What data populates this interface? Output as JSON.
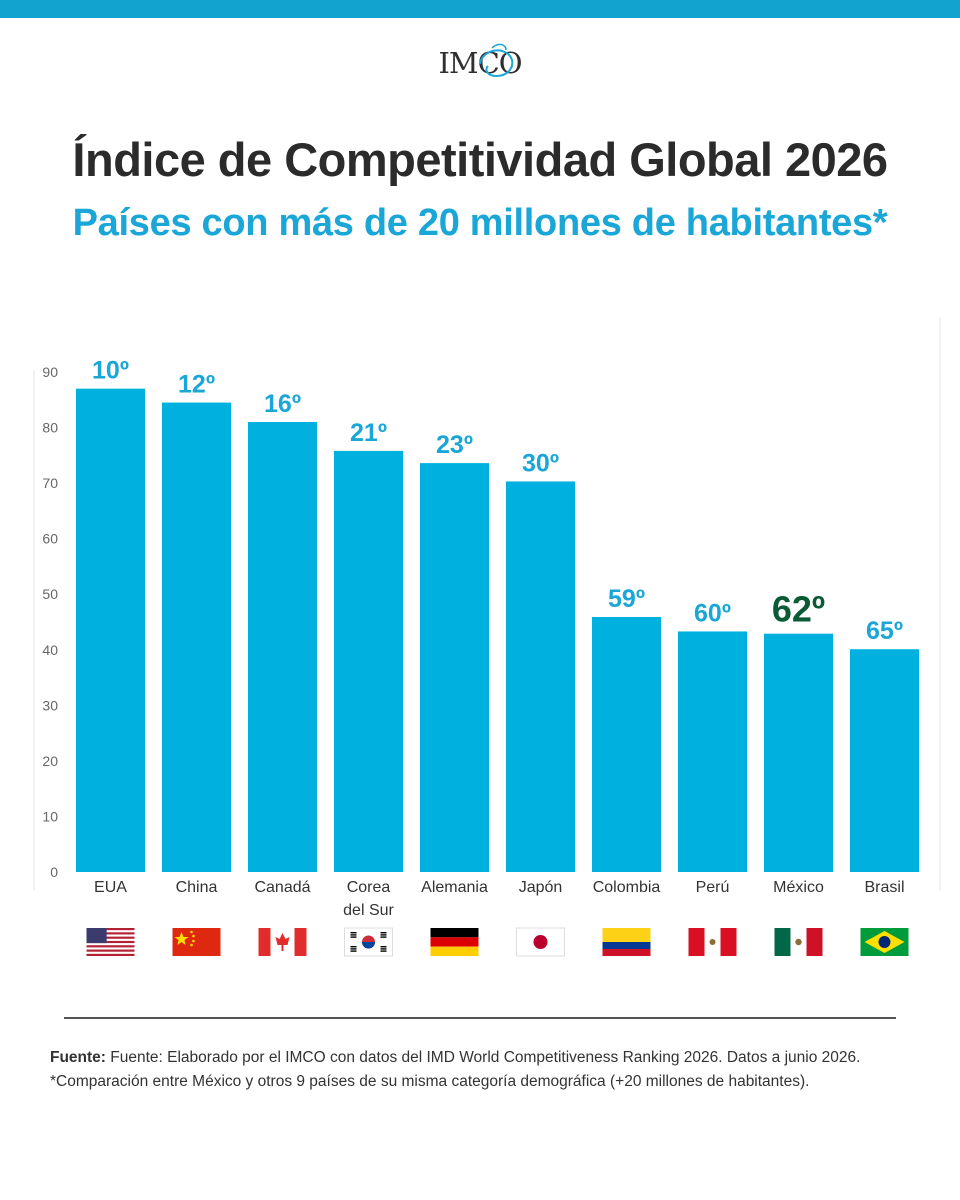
{
  "header": {
    "logo_text": "IMCO",
    "title": "Índice de Competitividad Global 2026",
    "subtitle": "Países con más de 20 millones de habitantes*"
  },
  "colors": {
    "bar": "#00b0de",
    "label": "#1aa6d6",
    "highlight": "#0b5a36",
    "top_band": "#12a3cf"
  },
  "chart_data": {
    "type": "bar",
    "title": "Índice de Competitividad Global 2026",
    "subtitle": "Países con más de 20 millones de habitantes*",
    "categories": [
      "EUA",
      "China",
      "Canadá",
      "Corea del Sur",
      "Alemania",
      "Japón",
      "Colombia",
      "Perú",
      "México",
      "Brasil"
    ],
    "values": [
      87,
      84.5,
      81,
      75.8,
      73.6,
      70.3,
      45.9,
      43.3,
      42.9,
      40.1
    ],
    "data_labels": [
      "10º",
      "12º",
      "16º",
      "21º",
      "23º",
      "30º",
      "59º",
      "60º",
      "62º",
      "65º"
    ],
    "highlight_category": "México",
    "flags": [
      "us-flag",
      "china-flag",
      "canada-flag",
      "south-korea-flag",
      "germany-flag",
      "japan-flag",
      "colombia-flag",
      "peru-flag",
      "mexico-flag",
      "brazil-flag"
    ],
    "yticks": [
      0,
      10,
      20,
      30,
      40,
      50,
      60,
      70,
      80,
      90
    ],
    "ylim": [
      0,
      90
    ],
    "xlabel": "",
    "ylabel": "",
    "grid": false,
    "legend": "none"
  },
  "footer": {
    "source_label": "Fuente:",
    "source_text": "Fuente: Elaborado por el IMCO con datos del IMD World Competitiveness Ranking 2026. Datos a junio 2026.",
    "note": "*Comparación entre México y otros 9 países de su misma categoría demográfica (+20 millones de habitantes)."
  }
}
